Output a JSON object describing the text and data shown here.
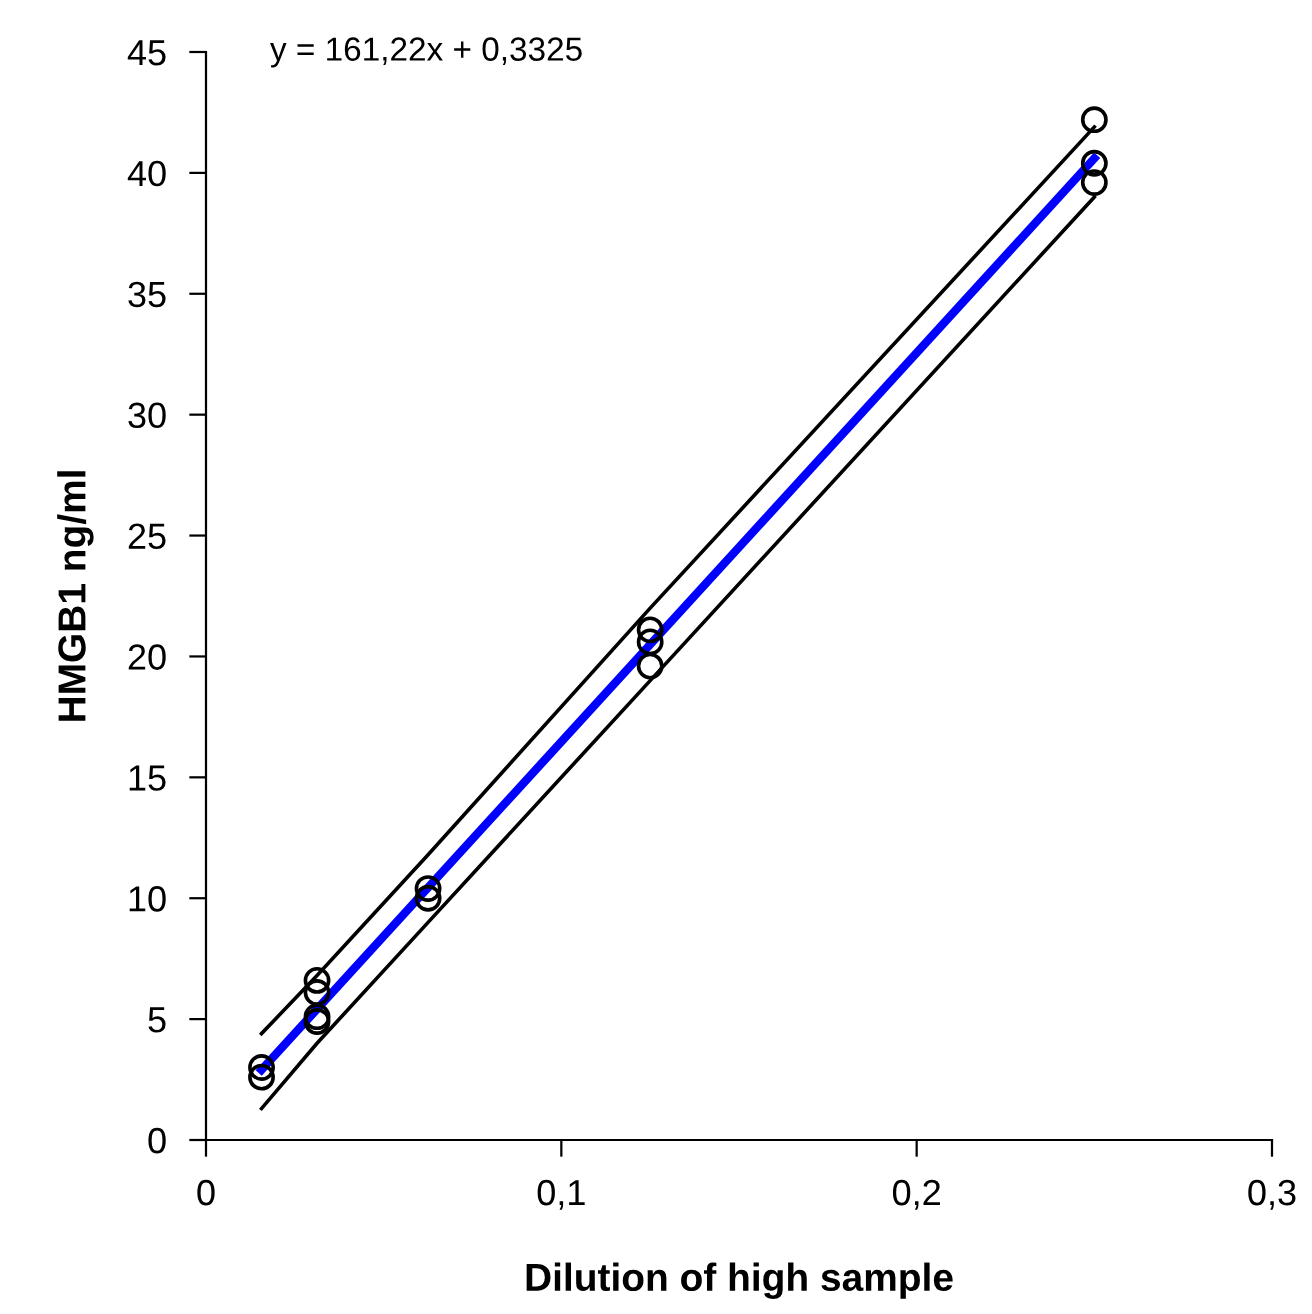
{
  "chart_data": {
    "type": "scatter",
    "xlabel": "Dilution of high sample",
    "ylabel": "HMGB1 ng/ml",
    "annotations": [
      "y = 161,22x + 0,3325"
    ],
    "xlim": [
      0,
      0.3
    ],
    "xticks": [
      0,
      {
        "value": 0.1,
        "label": "0,1"
      },
      {
        "value": 0.2,
        "label": "0,2"
      },
      {
        "value": 0.3,
        "label": "0,3"
      }
    ],
    "ylim": [
      0,
      45
    ],
    "yticks": [
      0,
      5,
      10,
      15,
      20,
      25,
      30,
      35,
      40,
      45
    ],
    "grid": false,
    "legend": false,
    "series": [
      {
        "color": "#000000",
        "marker": "circle",
        "x": [
          0.015625,
          0.015625,
          0.03125,
          0.03125,
          0.03125,
          0.03125,
          0.0625,
          0.0625,
          0.125,
          0.125,
          0.125,
          0.25,
          0.25,
          0.25
        ],
        "values": [
          3.0,
          2.6,
          6.6,
          6.1,
          5.1,
          4.9,
          10.4,
          10.0,
          21.1,
          20.6,
          19.6,
          42.2,
          40.4,
          39.6
        ]
      },
      {
        "type": "line",
        "color": "#000000",
        "line_style": "solid",
        "x": [
          0.015625,
          0.03125,
          0.0625,
          0.125,
          0.25
        ],
        "values": [
          4.4,
          6.8,
          11.8,
          22.0,
          41.9
        ]
      },
      {
        "type": "line",
        "color": "#000000",
        "line_style": "solid",
        "x": [
          0.015625,
          0.03125,
          0.0625,
          0.125,
          0.25
        ],
        "values": [
          1.3,
          4.0,
          9.0,
          19.0,
          39.0
        ]
      },
      {
        "type": "line",
        "color": "#0000ff",
        "line_style": "solid",
        "x": [
          0.015625,
          0.25
        ],
        "values": [
          2.9,
          40.6
        ]
      }
    ]
  }
}
